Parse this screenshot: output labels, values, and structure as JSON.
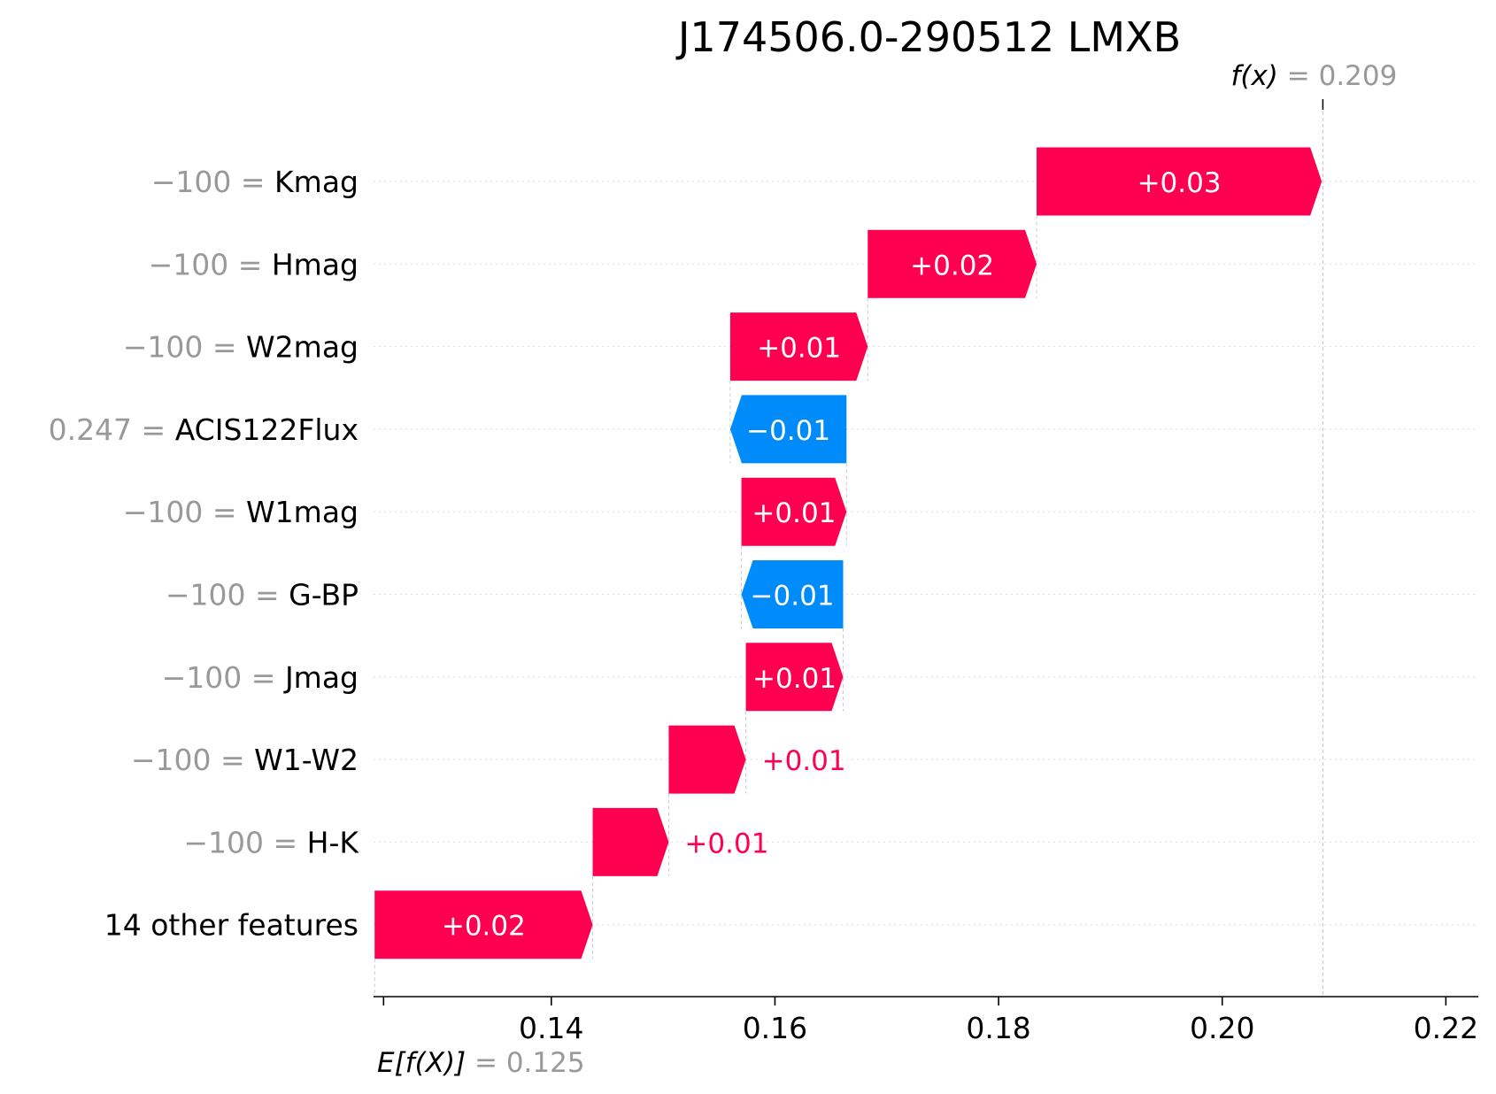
{
  "chart_data": {
    "type": "waterfall",
    "title": "J174506.0-290512 LMXB",
    "base_value": 0.125,
    "base_value_label": "= 0.125",
    "output_value": 0.209,
    "output_value_label": "= 0.209",
    "fx_label": "f(x)",
    "efx_label": "E[f(X)]",
    "xlim": [
      0.1245,
      0.2229
    ],
    "x_ticks": [
      0.14,
      0.16,
      0.18,
      0.2,
      0.22
    ],
    "x_tick_labels": [
      "0.14",
      "0.16",
      "0.18",
      "0.20",
      "0.22"
    ],
    "features": [
      {
        "value": "−100",
        "name": "Kmag",
        "shap": 0.0255,
        "shap_label": "+0.03",
        "start": 0.1834
      },
      {
        "value": "−100",
        "name": "Hmag",
        "shap": 0.0151,
        "shap_label": "+0.02",
        "start": 0.1683
      },
      {
        "value": "−100",
        "name": "W2mag",
        "shap": 0.0123,
        "shap_label": "+0.01",
        "start": 0.156
      },
      {
        "value": "0.247",
        "name": "ACIS122Flux",
        "shap": -0.0104,
        "shap_label": "−0.01",
        "start": 0.1664
      },
      {
        "value": "−100",
        "name": "W1mag",
        "shap": 0.0094,
        "shap_label": "+0.01",
        "start": 0.157
      },
      {
        "value": "−100",
        "name": "G-BP",
        "shap": -0.0091,
        "shap_label": "−0.01",
        "start": 0.1661
      },
      {
        "value": "−100",
        "name": "Jmag",
        "shap": 0.0087,
        "shap_label": "+0.01",
        "start": 0.1574
      },
      {
        "value": "−100",
        "name": "W1-W2",
        "shap": 0.0069,
        "shap_label": "+0.01",
        "start": 0.1505
      },
      {
        "value": "−100",
        "name": "H-K",
        "shap": 0.0068,
        "shap_label": "+0.01",
        "start": 0.1437
      },
      {
        "value": "",
        "name": "14 other features",
        "shap": 0.0195,
        "shap_label": "+0.02",
        "start": 0.1242
      }
    ],
    "colors": {
      "positive": "#ff0051",
      "negative": "#008bfb",
      "muted": "#999999",
      "grid": "#cccccc"
    }
  }
}
